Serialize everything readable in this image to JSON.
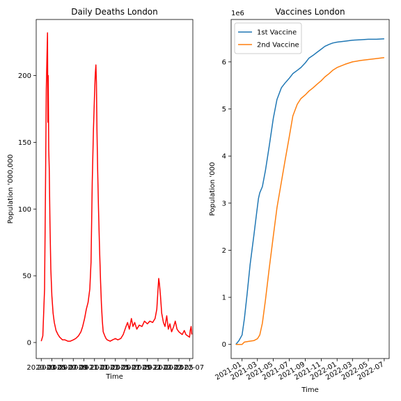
{
  "chart_data": [
    {
      "type": "line",
      "title": "Daily Deaths London",
      "xlabel": "Time",
      "ylabel": "Population '000,000",
      "xlim": [
        "2020-02-01",
        "2022-07-20"
      ],
      "ylim": [
        -12,
        242
      ],
      "xticks": [
        "2020-03",
        "2020-05",
        "2020-07",
        "2020-09",
        "2020-11",
        "2021-01",
        "2021-03",
        "2021-05",
        "2021-07",
        "2021-09",
        "2021-11",
        "2022-01",
        "2022-03",
        "2022-05",
        "2022-07"
      ],
      "yticks": [
        0,
        50,
        100,
        150,
        200
      ],
      "grid": false,
      "legend": "none",
      "series": [
        {
          "color": "#ff0000",
          "x": [
            "2020-03-01",
            "2020-03-10",
            "2020-03-20",
            "2020-03-25",
            "2020-03-30",
            "2020-04-03",
            "2020-04-06",
            "2020-04-08",
            "2020-04-10",
            "2020-04-13",
            "2020-04-16",
            "2020-04-20",
            "2020-04-25",
            "2020-05-01",
            "2020-05-08",
            "2020-05-15",
            "2020-05-25",
            "2020-06-05",
            "2020-06-15",
            "2020-07-01",
            "2020-07-15",
            "2020-08-01",
            "2020-08-15",
            "2020-09-01",
            "2020-09-15",
            "2020-10-01",
            "2020-10-15",
            "2020-10-25",
            "2020-11-05",
            "2020-11-15",
            "2020-11-25",
            "2020-12-05",
            "2020-12-12",
            "2020-12-19",
            "2020-12-26",
            "2021-01-01",
            "2021-01-05",
            "2021-01-09",
            "2021-01-12",
            "2021-01-15",
            "2021-01-19",
            "2021-01-24",
            "2021-01-30",
            "2021-02-05",
            "2021-02-10",
            "2021-02-15",
            "2021-02-20",
            "2021-03-01",
            "2021-03-08",
            "2021-03-15",
            "2021-04-01",
            "2021-04-15",
            "2021-05-01",
            "2021-05-15",
            "2021-06-01",
            "2021-06-15",
            "2021-07-01",
            "2021-07-10",
            "2021-07-20",
            "2021-08-01",
            "2021-08-10",
            "2021-08-20",
            "2021-09-01",
            "2021-09-15",
            "2021-10-01",
            "2021-10-15",
            "2021-11-01",
            "2021-11-15",
            "2021-12-01",
            "2021-12-15",
            "2021-12-25",
            "2022-01-01",
            "2022-01-05",
            "2022-01-09",
            "2022-01-15",
            "2022-01-22",
            "2022-02-01",
            "2022-02-10",
            "2022-02-20",
            "2022-03-01",
            "2022-03-10",
            "2022-03-20",
            "2022-04-01",
            "2022-04-10",
            "2022-04-20",
            "2022-05-01",
            "2022-05-10",
            "2022-05-20",
            "2022-06-01",
            "2022-06-10",
            "2022-06-20",
            "2022-07-01",
            "2022-07-05",
            "2022-07-10",
            "2022-07-14"
          ],
          "y": [
            1,
            5,
            40,
            110,
            190,
            215,
            232,
            165,
            200,
            145,
            130,
            90,
            55,
            35,
            22,
            15,
            9,
            6,
            4,
            2,
            2,
            1,
            1,
            2,
            3,
            5,
            8,
            12,
            18,
            25,
            30,
            40,
            60,
            120,
            160,
            185,
            200,
            208,
            195,
            160,
            130,
            100,
            70,
            45,
            28,
            16,
            8,
            5,
            3,
            2,
            1,
            2,
            3,
            2,
            3,
            6,
            12,
            15,
            10,
            18,
            12,
            15,
            10,
            13,
            12,
            16,
            14,
            16,
            15,
            18,
            25,
            40,
            48,
            44,
            35,
            22,
            15,
            12,
            20,
            10,
            14,
            8,
            12,
            16,
            10,
            8,
            7,
            6,
            9,
            6,
            5,
            4,
            9,
            12,
            6
          ]
        }
      ]
    },
    {
      "type": "line",
      "title": "Vaccines London",
      "xlabel": "Time",
      "ylabel": "Population '000",
      "y_offset_label": "1e6",
      "xlim": [
        "2020-11-20",
        "2022-07-20"
      ],
      "ylim": [
        -0.3,
        6.9
      ],
      "xticks": [
        "2021-01",
        "2021-03",
        "2021-05",
        "2021-07",
        "2021-09",
        "2021-11",
        "2022-01",
        "2022-03",
        "2022-05",
        "2022-07"
      ],
      "yticks": [
        0,
        1,
        2,
        3,
        4,
        5,
        6
      ],
      "grid": false,
      "legend": "top-left",
      "series": [
        {
          "name": "1st Vaccine",
          "color": "#1f77b4",
          "x": [
            "2020-12-08",
            "2020-12-20",
            "2021-01-01",
            "2021-01-10",
            "2021-01-20",
            "2021-02-01",
            "2021-02-15",
            "2021-02-25",
            "2021-03-05",
            "2021-03-10",
            "2021-03-20",
            "2021-04-01",
            "2021-04-15",
            "2021-05-01",
            "2021-05-15",
            "2021-06-01",
            "2021-06-15",
            "2021-07-01",
            "2021-07-15",
            "2021-08-01",
            "2021-08-15",
            "2021-09-01",
            "2021-09-15",
            "2021-10-01",
            "2021-10-15",
            "2021-11-01",
            "2021-11-15",
            "2021-12-01",
            "2021-12-15",
            "2022-01-01",
            "2022-02-01",
            "2022-03-01",
            "2022-04-01",
            "2022-05-01",
            "2022-06-01",
            "2022-07-01"
          ],
          "y": [
            0,
            0.08,
            0.2,
            0.55,
            1.05,
            1.7,
            2.3,
            2.75,
            3.1,
            3.22,
            3.35,
            3.7,
            4.2,
            4.8,
            5.2,
            5.45,
            5.55,
            5.65,
            5.75,
            5.82,
            5.88,
            5.98,
            6.08,
            6.14,
            6.2,
            6.27,
            6.33,
            6.37,
            6.4,
            6.42,
            6.44,
            6.46,
            6.47,
            6.48,
            6.48,
            6.49
          ]
        },
        {
          "name": "2nd Vaccine",
          "color": "#ff7f0e",
          "x": [
            "2020-12-08",
            "2021-01-01",
            "2021-01-10",
            "2021-02-01",
            "2021-02-15",
            "2021-03-01",
            "2021-03-10",
            "2021-03-20",
            "2021-04-01",
            "2021-04-15",
            "2021-05-01",
            "2021-05-15",
            "2021-06-01",
            "2021-06-15",
            "2021-07-01",
            "2021-07-15",
            "2021-08-01",
            "2021-08-15",
            "2021-09-01",
            "2021-09-15",
            "2021-10-01",
            "2021-10-15",
            "2021-11-01",
            "2021-11-15",
            "2021-12-01",
            "2021-12-15",
            "2022-01-01",
            "2022-02-01",
            "2022-03-01",
            "2022-04-01",
            "2022-05-01",
            "2022-06-01",
            "2022-07-01"
          ],
          "y": [
            0,
            0.0,
            0.05,
            0.07,
            0.08,
            0.12,
            0.2,
            0.45,
            0.95,
            1.6,
            2.3,
            2.9,
            3.45,
            3.9,
            4.4,
            4.85,
            5.1,
            5.22,
            5.3,
            5.38,
            5.45,
            5.52,
            5.6,
            5.68,
            5.75,
            5.82,
            5.88,
            5.95,
            6.0,
            6.03,
            6.05,
            6.07,
            6.09
          ]
        }
      ]
    }
  ]
}
